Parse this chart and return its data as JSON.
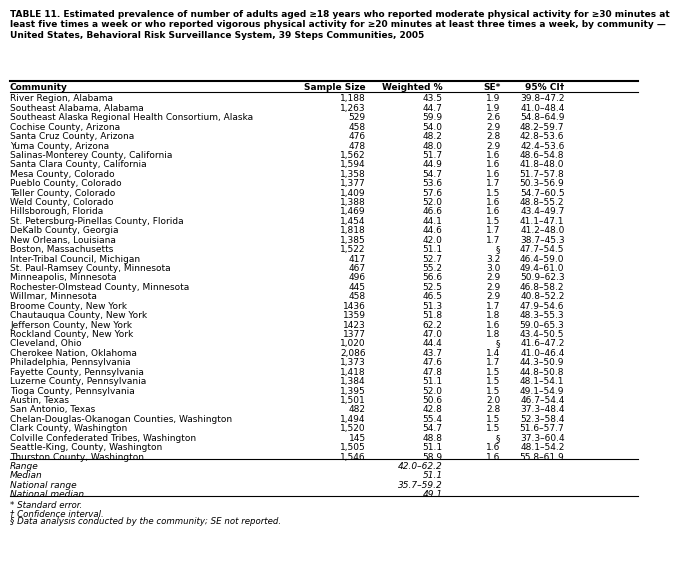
{
  "title": "TABLE 11. Estimated prevalence of number of adults aged ≥18 years who reported moderate physical activity for ≥30 minutes at\nleast five times a week or who reported vigorous physical activity for ≥20 minutes at least three times a week, by community —\nUnited States, Behavioral Risk Surveillance System, 39 Steps Communities, 2005",
  "columns": [
    "Community",
    "Sample Size",
    "Weighted %",
    "SE*",
    "95% CI†"
  ],
  "rows": [
    [
      "River Region, Alabama",
      "1,188",
      "43.5",
      "1.9",
      "39.8–47.2"
    ],
    [
      "Southeast Alabama, Alabama",
      "1,263",
      "44.7",
      "1.9",
      "41.0–48.4"
    ],
    [
      "Southeast Alaska Regional Health Consortium, Alaska",
      "529",
      "59.9",
      "2.6",
      "54.8–64.9"
    ],
    [
      "Cochise County, Arizona",
      "458",
      "54.0",
      "2.9",
      "48.2–59.7"
    ],
    [
      "Santa Cruz County, Arizona",
      "476",
      "48.2",
      "2.8",
      "42.8–53.6"
    ],
    [
      "Yuma County, Arizona",
      "478",
      "48.0",
      "2.9",
      "42.4–53.6"
    ],
    [
      "Salinas-Monterey County, California",
      "1,562",
      "51.7",
      "1.6",
      "48.6–54.8"
    ],
    [
      "Santa Clara County, California",
      "1,594",
      "44.9",
      "1.6",
      "41.8–48.0"
    ],
    [
      "Mesa County, Colorado",
      "1,358",
      "54.7",
      "1.6",
      "51.7–57.8"
    ],
    [
      "Pueblo County, Colorado",
      "1,377",
      "53.6",
      "1.7",
      "50.3–56.9"
    ],
    [
      "Teller County, Colorado",
      "1,409",
      "57.6",
      "1.5",
      "54.7–60.5"
    ],
    [
      "Weld County, Colorado",
      "1,388",
      "52.0",
      "1.6",
      "48.8–55.2"
    ],
    [
      "Hillsborough, Florida",
      "1,469",
      "46.6",
      "1.6",
      "43.4–49.7"
    ],
    [
      "St. Petersburg-Pinellas County, Florida",
      "1,454",
      "44.1",
      "1.5",
      "41.1–47.1"
    ],
    [
      "DeKalb County, Georgia",
      "1,818",
      "44.6",
      "1.7",
      "41.2–48.0"
    ],
    [
      "New Orleans, Louisiana",
      "1,385",
      "42.0",
      "1.7",
      "38.7–45.3"
    ],
    [
      "Boston, Massachusetts",
      "1,522",
      "51.1",
      "§",
      "47.7–54.5"
    ],
    [
      "Inter-Tribal Council, Michigan",
      "417",
      "52.7",
      "3.2",
      "46.4–59.0"
    ],
    [
      "St. Paul-Ramsey County, Minnesota",
      "467",
      "55.2",
      "3.0",
      "49.4–61.0"
    ],
    [
      "Minneapolis, Minnesota",
      "496",
      "56.6",
      "2.9",
      "50.9–62.3"
    ],
    [
      "Rochester-Olmstead County, Minnesota",
      "445",
      "52.5",
      "2.9",
      "46.8–58.2"
    ],
    [
      "Willmar, Minnesota",
      "458",
      "46.5",
      "2.9",
      "40.8–52.2"
    ],
    [
      "Broome County, New York",
      "1436",
      "51.3",
      "1.7",
      "47.9–54.6"
    ],
    [
      "Chautauqua County, New York",
      "1359",
      "51.8",
      "1.8",
      "48.3–55.3"
    ],
    [
      "Jefferson County, New York",
      "1423",
      "62.2",
      "1.6",
      "59.0–65.3"
    ],
    [
      "Rockland County, New York",
      "1377",
      "47.0",
      "1.8",
      "43.4–50.5"
    ],
    [
      "Cleveland, Ohio",
      "1,020",
      "44.4",
      "§",
      "41.6–47.2"
    ],
    [
      "Cherokee Nation, Oklahoma",
      "2,086",
      "43.7",
      "1.4",
      "41.0–46.4"
    ],
    [
      "Philadelphia, Pennsylvania",
      "1,373",
      "47.6",
      "1.7",
      "44.3–50.9"
    ],
    [
      "Fayette County, Pennsylvania",
      "1,418",
      "47.8",
      "1.5",
      "44.8–50.8"
    ],
    [
      "Luzerne County, Pennsylvania",
      "1,384",
      "51.1",
      "1.5",
      "48.1–54.1"
    ],
    [
      "Tioga County, Pennsylvania",
      "1,395",
      "52.0",
      "1.5",
      "49.1–54.9"
    ],
    [
      "Austin, Texas",
      "1,501",
      "50.6",
      "2.0",
      "46.7–54.4"
    ],
    [
      "San Antonio, Texas",
      "482",
      "42.8",
      "2.8",
      "37.3–48.4"
    ],
    [
      "Chelan-Douglas-Okanogan Counties, Washington",
      "1,494",
      "55.4",
      "1.5",
      "52.3–58.4"
    ],
    [
      "Clark County, Washington",
      "1,520",
      "54.7",
      "1.5",
      "51.6–57.7"
    ],
    [
      "Colville Confederated Tribes, Washington",
      "145",
      "48.8",
      "§",
      "37.3–60.4"
    ],
    [
      "Seattle-King, County, Washington",
      "1,505",
      "51.1",
      "1.6",
      "48.1–54.2"
    ],
    [
      "Thurston County, Washington",
      "1,546",
      "58.9",
      "1.6",
      "55.8–61.9"
    ]
  ],
  "summary_rows": [
    [
      "Range",
      "",
      "42.0–62.2",
      "",
      ""
    ],
    [
      "Median",
      "",
      "51.1",
      "",
      ""
    ],
    [
      "National range",
      "",
      "35.7–59.2",
      "",
      ""
    ],
    [
      "National median",
      "",
      "49.1",
      "",
      ""
    ]
  ],
  "footnotes": [
    "* Standard error.",
    "† Confidence interval.",
    "§ Data analysis conducted by the community; SE not reported."
  ],
  "bg_color": "#ffffff",
  "text_color": "#000000",
  "font_size": 6.5,
  "title_font_size": 6.5
}
